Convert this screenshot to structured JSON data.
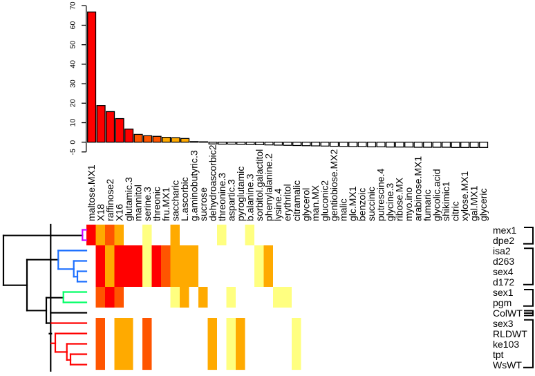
{
  "chart_data": [
    {
      "type": "bar",
      "title": "",
      "xlabel": "",
      "ylabel": "",
      "ylim": [
        -5,
        70
      ],
      "yticks": [
        70,
        60,
        50,
        40,
        30,
        20,
        10,
        0,
        -5
      ],
      "ytick_labels": [
        "70",
        "60",
        "50",
        "40",
        "30",
        "20",
        "10",
        "0",
        "-5"
      ],
      "grid": false,
      "categories": [
        "maltose.MX1",
        "X18",
        "raffinose2",
        "X16",
        "glutamic.3",
        "mannitol",
        "serine.3",
        "threonic",
        "fru.MX1",
        "saccharic",
        "L.ascorbic",
        "g.aminobutyric.3",
        "sucrose",
        "dehydroascorbic2",
        "threonine.3",
        "aspartic.3",
        "pyroglutamic",
        "b.alanine.3",
        "sorbitol.galactitol",
        "phenylalanine.2",
        "lysine.4",
        "erythritol",
        "citramalic",
        "glycerol",
        "man.MX",
        "gluconic2",
        "gentiobiose.MX2",
        "malic",
        "glc.MX1",
        "benzoic",
        "succinic",
        "putrescine.4",
        "glycine.3",
        "ribose.MX",
        "myo.ino",
        "arabinose.MX1",
        "fumaric",
        "glycolic.acid",
        "shikimic1",
        "citric",
        "xylose.MX1",
        "gal.MX1",
        "glyceric"
      ],
      "values": [
        66.8,
        18.8,
        15.7,
        12.1,
        6.7,
        4.0,
        3.3,
        3.0,
        2.5,
        2.3,
        1.9,
        0.3,
        0.2,
        -0.9,
        -1.0,
        -1.0,
        -1.1,
        -1.2,
        -1.3,
        -1.4,
        -1.5,
        -1.6,
        -1.7,
        -1.8,
        -1.9,
        -2.0,
        -2.1,
        -2.2,
        -2.3,
        -2.3,
        -2.4,
        -2.4,
        -2.5,
        -2.5,
        -2.5,
        -2.6,
        -2.6,
        -2.6,
        -2.6,
        -2.7,
        -2.7,
        -2.7,
        -2.7
      ],
      "color_levels": [
        4,
        4,
        4,
        4,
        4,
        3,
        3,
        3,
        2,
        2,
        2,
        1,
        1,
        0,
        0,
        0,
        0,
        0,
        0,
        0,
        0,
        0,
        0,
        0,
        0,
        0,
        0,
        0,
        0,
        0,
        0,
        0,
        0,
        0,
        0,
        0,
        0,
        0,
        0,
        0,
        0,
        0,
        0
      ]
    },
    {
      "type": "heatmap",
      "palette": [
        "#FFFFFF",
        "#FFFF80",
        "#FFAA00",
        "#FF5500",
        "#FF0000"
      ],
      "columns_same_as_bar_categories": true,
      "rows": [
        "mex1",
        "dpe2",
        "isa2",
        "d263",
        "sex4",
        "d172",
        "sex1",
        "pgm",
        "ColWT",
        "sex3",
        "RLDWT",
        "ke103",
        "tpt",
        "WsWT"
      ],
      "levels": [
        [
          4,
          2,
          3,
          2,
          0,
          0,
          1,
          0,
          0,
          2,
          0,
          0,
          0,
          0,
          1,
          0,
          0,
          1,
          0,
          0,
          0,
          0,
          0,
          0,
          0,
          0,
          0,
          0,
          0,
          0,
          0,
          0,
          0,
          0,
          0,
          0,
          0,
          0,
          0,
          0,
          0,
          0,
          0
        ],
        [
          4,
          2,
          3,
          2,
          0,
          0,
          1,
          0,
          0,
          2,
          0,
          0,
          0,
          0,
          1,
          0,
          0,
          1,
          0,
          0,
          0,
          0,
          0,
          0,
          0,
          0,
          0,
          0,
          0,
          0,
          0,
          0,
          0,
          0,
          0,
          0,
          0,
          0,
          0,
          0,
          0,
          0,
          0
        ],
        [
          0,
          4,
          2,
          4,
          4,
          4,
          1,
          4,
          3,
          2,
          2,
          2,
          0,
          0,
          0,
          0,
          0,
          0,
          1,
          2,
          0,
          0,
          0,
          0,
          0,
          0,
          0,
          0,
          0,
          0,
          0,
          0,
          0,
          0,
          0,
          0,
          0,
          0,
          0,
          0,
          0,
          0,
          0
        ],
        [
          0,
          4,
          2,
          4,
          4,
          4,
          1,
          4,
          3,
          2,
          2,
          2,
          0,
          0,
          0,
          0,
          0,
          0,
          1,
          2,
          0,
          0,
          0,
          0,
          0,
          0,
          0,
          0,
          0,
          0,
          0,
          0,
          0,
          0,
          0,
          0,
          0,
          0,
          0,
          0,
          0,
          0,
          0
        ],
        [
          0,
          4,
          2,
          4,
          4,
          4,
          1,
          4,
          3,
          2,
          2,
          2,
          0,
          0,
          0,
          0,
          0,
          0,
          1,
          2,
          0,
          0,
          0,
          0,
          0,
          0,
          0,
          0,
          0,
          0,
          0,
          0,
          0,
          0,
          0,
          0,
          0,
          0,
          0,
          0,
          0,
          0,
          0
        ],
        [
          0,
          4,
          2,
          4,
          4,
          4,
          1,
          4,
          3,
          2,
          2,
          2,
          0,
          0,
          0,
          0,
          0,
          0,
          1,
          2,
          0,
          0,
          0,
          0,
          0,
          0,
          0,
          0,
          0,
          0,
          0,
          0,
          0,
          0,
          0,
          0,
          0,
          0,
          0,
          0,
          0,
          0,
          0
        ],
        [
          0,
          3,
          4,
          3,
          0,
          0,
          0,
          0,
          0,
          1,
          2,
          0,
          2,
          0,
          0,
          1,
          0,
          0,
          0,
          0,
          1,
          1,
          0,
          0,
          0,
          0,
          0,
          0,
          0,
          0,
          0,
          0,
          0,
          0,
          0,
          0,
          0,
          0,
          0,
          0,
          0,
          0,
          0
        ],
        [
          0,
          3,
          4,
          3,
          0,
          0,
          0,
          0,
          0,
          1,
          2,
          0,
          2,
          0,
          0,
          1,
          0,
          0,
          0,
          0,
          1,
          1,
          0,
          0,
          0,
          0,
          0,
          0,
          0,
          0,
          0,
          0,
          0,
          0,
          0,
          0,
          0,
          0,
          0,
          0,
          0,
          0,
          0
        ],
        [
          0,
          0,
          0,
          0,
          0,
          0,
          0,
          0,
          0,
          0,
          0,
          0,
          0,
          0,
          0,
          0,
          0,
          0,
          0,
          0,
          0,
          0,
          0,
          0,
          0,
          0,
          0,
          0,
          0,
          0,
          0,
          0,
          0,
          0,
          0,
          0,
          0,
          0,
          0,
          0,
          0,
          0,
          0
        ],
        [
          0,
          3,
          0,
          2,
          2,
          0,
          3,
          0,
          0,
          0,
          0,
          0,
          0,
          2,
          0,
          1,
          2,
          0,
          0,
          0,
          0,
          0,
          1,
          0,
          0,
          0,
          0,
          0,
          0,
          0,
          0,
          0,
          0,
          0,
          0,
          0,
          0,
          0,
          0,
          0,
          0,
          0,
          0
        ],
        [
          0,
          3,
          0,
          2,
          2,
          0,
          3,
          0,
          0,
          0,
          0,
          0,
          0,
          2,
          0,
          1,
          2,
          0,
          0,
          0,
          0,
          0,
          1,
          0,
          0,
          0,
          0,
          0,
          0,
          0,
          0,
          0,
          0,
          0,
          0,
          0,
          0,
          0,
          0,
          0,
          0,
          0,
          0
        ],
        [
          0,
          3,
          0,
          2,
          2,
          0,
          3,
          0,
          0,
          0,
          0,
          0,
          0,
          2,
          0,
          1,
          2,
          0,
          0,
          0,
          0,
          0,
          1,
          0,
          0,
          0,
          0,
          0,
          0,
          0,
          0,
          0,
          0,
          0,
          0,
          0,
          0,
          0,
          0,
          0,
          0,
          0,
          0
        ],
        [
          0,
          3,
          0,
          2,
          2,
          0,
          3,
          0,
          0,
          0,
          0,
          0,
          0,
          2,
          0,
          1,
          2,
          0,
          0,
          0,
          0,
          0,
          1,
          0,
          0,
          0,
          0,
          0,
          0,
          0,
          0,
          0,
          0,
          0,
          0,
          0,
          0,
          0,
          0,
          0,
          0,
          0,
          0
        ],
        [
          0,
          3,
          0,
          2,
          2,
          0,
          3,
          0,
          0,
          0,
          0,
          0,
          0,
          2,
          0,
          1,
          2,
          0,
          0,
          0,
          0,
          0,
          1,
          0,
          0,
          0,
          0,
          0,
          0,
          0,
          0,
          0,
          0,
          0,
          0,
          0,
          0,
          0,
          0,
          0,
          0,
          0,
          0
        ]
      ],
      "row_clusters": [
        {
          "members": [
            "mex1",
            "dpe2"
          ],
          "color": "#CC00FF"
        },
        {
          "members": [
            "isa2",
            "d263",
            "sex4",
            "d172"
          ],
          "color": "#1A6EFF"
        },
        {
          "members": [
            "sex1",
            "pgm"
          ],
          "color": "#00FF66"
        },
        {
          "members": [
            "ColWT"
          ],
          "color": "#000000"
        },
        {
          "members": [
            "sex3",
            "RLDWT",
            "ke103",
            "tpt",
            "WsWT"
          ],
          "color": "#FF0000"
        }
      ],
      "dendrogram_color": "#000000"
    }
  ]
}
